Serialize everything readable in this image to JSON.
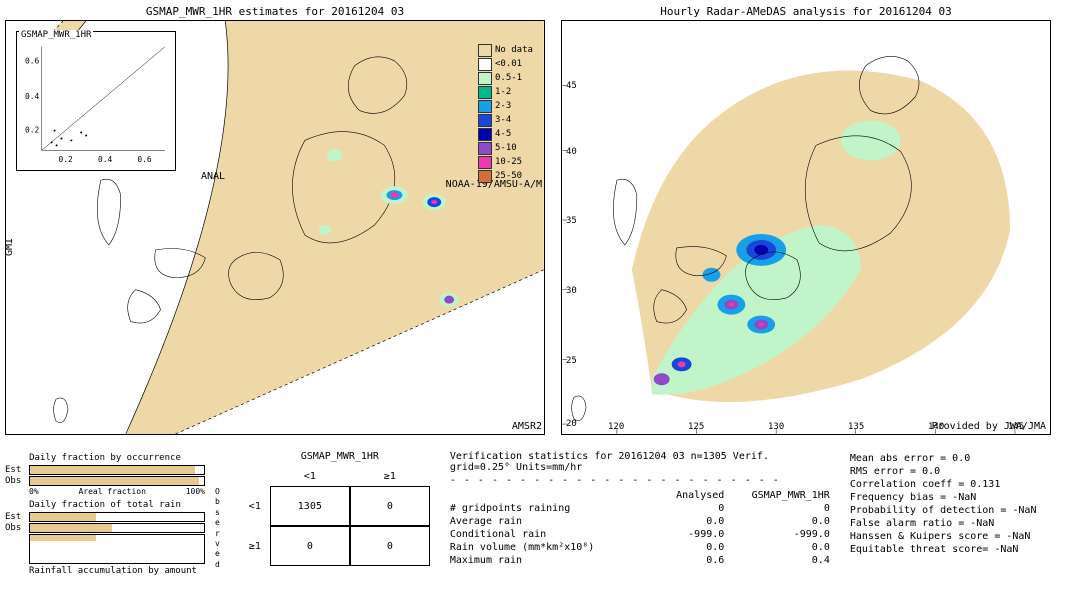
{
  "maps": {
    "left": {
      "title": "GSMAP_MWR_1HR estimates for 20161204 03",
      "anal_label": "ANAL",
      "gmi_label": "GMI",
      "sat1_label": "NOAA-19/AMSU-A/M",
      "sat2_label": "AMSR2",
      "inset_title": "GSMAP_MWR_1HR",
      "inset_ticks_y": [
        "0.6",
        "0.4",
        "0.2"
      ],
      "inset_ticks_x": [
        "0.2",
        "0.4",
        "0.6"
      ],
      "swath_color": "#eed8a8",
      "sea_color": "#ffffff",
      "coast_color": "#000000"
    },
    "right": {
      "title": "Hourly Radar-AMeDAS analysis for 20161204 03",
      "lat_ticks": [
        45,
        40,
        35,
        30,
        25,
        20
      ],
      "lon_ticks": [
        120,
        125,
        130,
        135,
        140,
        145
      ],
      "provided": "Provided by JWA/JMA"
    }
  },
  "legend": {
    "items": [
      {
        "label": "No data",
        "color": "#eed8a8"
      },
      {
        "label": "<0.01",
        "color": "#ffffff"
      },
      {
        "label": "0.5-1",
        "color": "#c1f5c9"
      },
      {
        "label": "1-2",
        "color": "#00b890"
      },
      {
        "label": "2-3",
        "color": "#17a0e8"
      },
      {
        "label": "3-4",
        "color": "#1948d8"
      },
      {
        "label": "4-5",
        "color": "#0000b0"
      },
      {
        "label": "5-10",
        "color": "#8f4bc6"
      },
      {
        "label": "10-25",
        "color": "#e93ab0"
      },
      {
        "label": "25-50",
        "color": "#d07038"
      }
    ]
  },
  "fractions": {
    "occurrence": {
      "title": "Daily fraction by occurrence",
      "rows": [
        {
          "label": "Est",
          "pct": 95
        },
        {
          "label": "Obs",
          "pct": 97
        }
      ],
      "axis": "Areal fraction",
      "a0": "0%",
      "a1": "100%"
    },
    "total": {
      "title": "Daily fraction of total rain",
      "rows": [
        {
          "label": "Est",
          "pct": 38
        },
        {
          "label": "Obs",
          "pct": 47
        }
      ],
      "axis": "Rainfall accumulation by amount"
    },
    "observed_label": "Observed"
  },
  "contingency": {
    "title": "GSMAP_MWR_1HR",
    "col_lt": "<1",
    "col_ge": "≥1",
    "rows": [
      {
        "hdr": "<1",
        "a": "1305",
        "b": "0"
      },
      {
        "hdr": "≥1",
        "a": "0",
        "b": "0"
      }
    ]
  },
  "verif": {
    "header": "Verification statistics for 20161204 03  n=1305  Verif. grid=0.25°  Units=mm/hr",
    "col_a": "Analysed",
    "col_b": "GSMAP_MWR_1HR",
    "rows": [
      {
        "name": "# gridpoints raining",
        "a": "0",
        "b": "0"
      },
      {
        "name": "Average rain",
        "a": "0.0",
        "b": "0.0"
      },
      {
        "name": "Conditional rain",
        "a": "-999.0",
        "b": "-999.0"
      },
      {
        "name": "Rain volume (mm*km²x10⁸)",
        "a": "0.0",
        "b": "0.0"
      },
      {
        "name": "Maximum rain",
        "a": "0.6",
        "b": "0.4"
      }
    ],
    "metrics": [
      "Mean abs error = 0.0",
      "RMS error = 0.0",
      "Correlation coeff = 0.131",
      "Frequency bias = -NaN",
      "Probability of detection = -NaN",
      "False alarm ratio = -NaN",
      "Hanssen & Kuipers score = -NaN",
      "Equitable threat score= -NaN"
    ]
  }
}
